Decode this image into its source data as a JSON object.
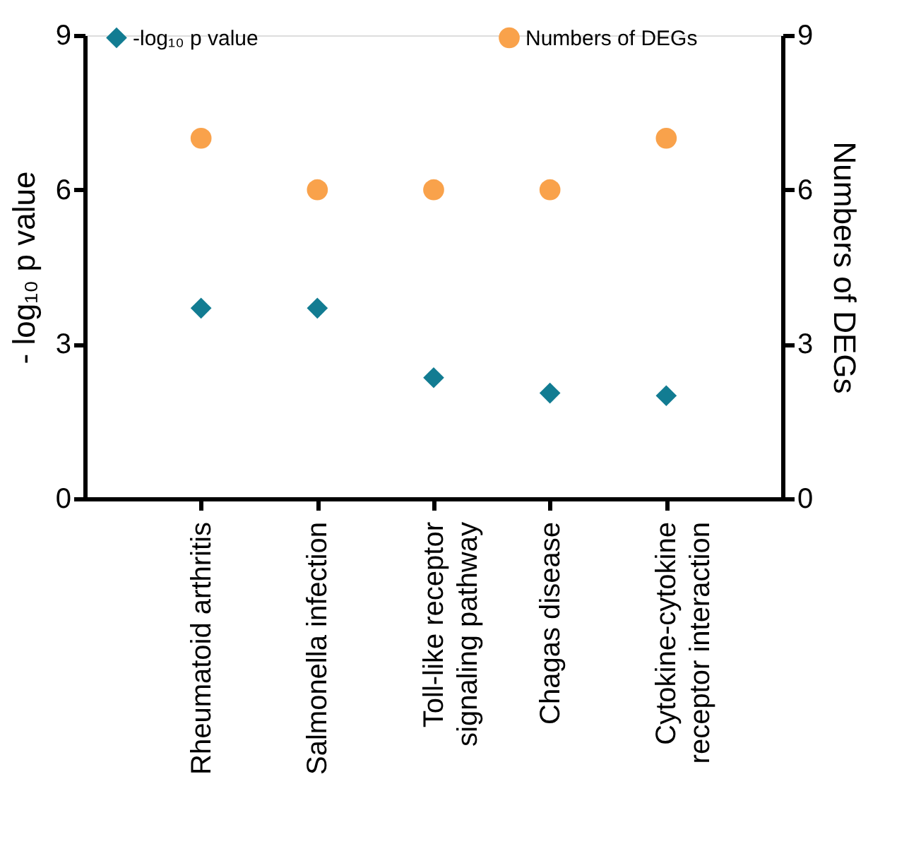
{
  "chart_data": {
    "type": "scatter",
    "ylabel": "- log₁₀ p value",
    "y2label": "Numbers of DEGs",
    "categories": [
      "Rheumatoid arthritis",
      "Salmonella infection",
      "Toll-like receptor signaling pathway",
      "Chagas disease",
      "Cytokine-cytokine receptor interaction"
    ],
    "series": [
      {
        "name": "-log₁₀ p value",
        "color": "#127c92",
        "marker": "diamond",
        "values": [
          3.7,
          3.7,
          2.35,
          2.05,
          2.0
        ]
      },
      {
        "name": "Numbers of DEGs",
        "color": "#f9a24b",
        "marker": "circle",
        "axis": "y2",
        "values": [
          7,
          6,
          6,
          6,
          7
        ]
      }
    ],
    "ylim": [
      0,
      9
    ],
    "yticks": [
      0,
      3,
      6,
      9
    ],
    "y2lim": [
      0,
      9
    ],
    "y2ticks": [
      0,
      3,
      6,
      9
    ],
    "grid": false,
    "legend": "top"
  }
}
